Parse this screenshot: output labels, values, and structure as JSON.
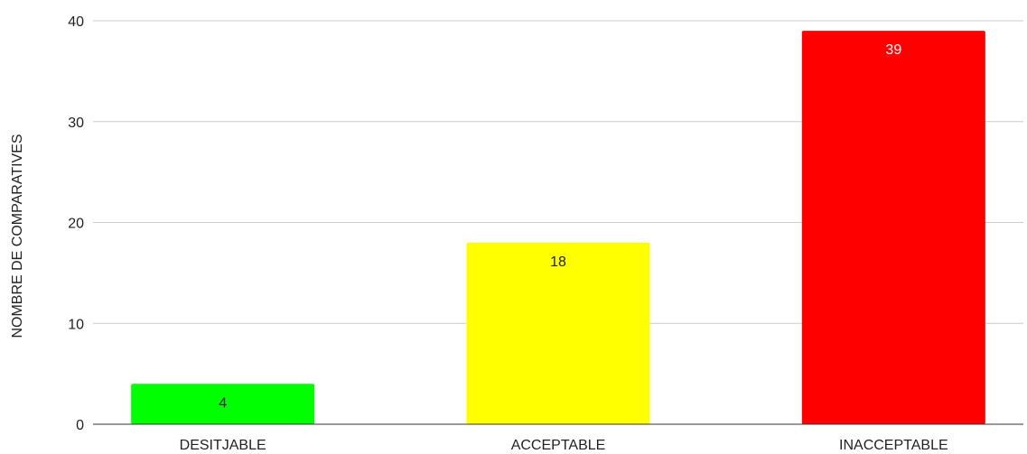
{
  "chart_data": {
    "type": "bar",
    "title": "",
    "xlabel": "",
    "ylabel": "NOMBRE DE COMPARATIVES",
    "categories": [
      "DESITJABLE",
      "ACCEPTABLE",
      "INACCEPTABLE"
    ],
    "values": [
      4,
      18,
      39
    ],
    "data_labels": [
      "4",
      "18",
      "39"
    ],
    "bar_colors": [
      "#00ff00",
      "#ffff00",
      "#ff0000"
    ],
    "data_label_colors": [
      "#222222",
      "#222222",
      "#ffffff"
    ],
    "ylim": [
      0,
      40
    ],
    "yticks": [
      0,
      10,
      20,
      30,
      40
    ],
    "ytick_labels": [
      "0",
      "10",
      "20",
      "30",
      "40"
    ],
    "grid": true,
    "legend": "none"
  }
}
